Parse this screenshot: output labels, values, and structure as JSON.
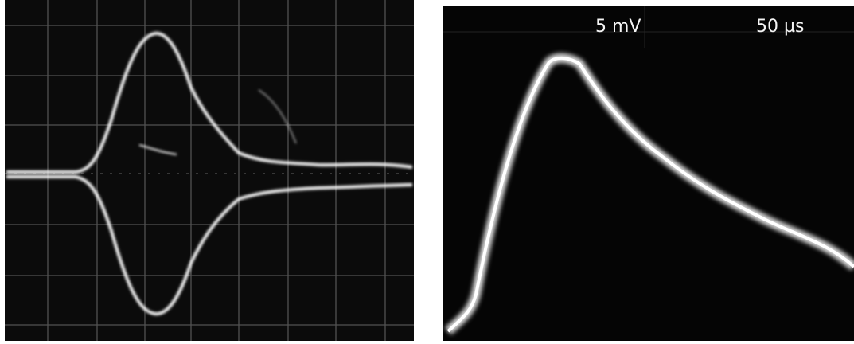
{
  "right_screen": {
    "sensitivity": "5 mV",
    "timebase": "50 µs"
  }
}
